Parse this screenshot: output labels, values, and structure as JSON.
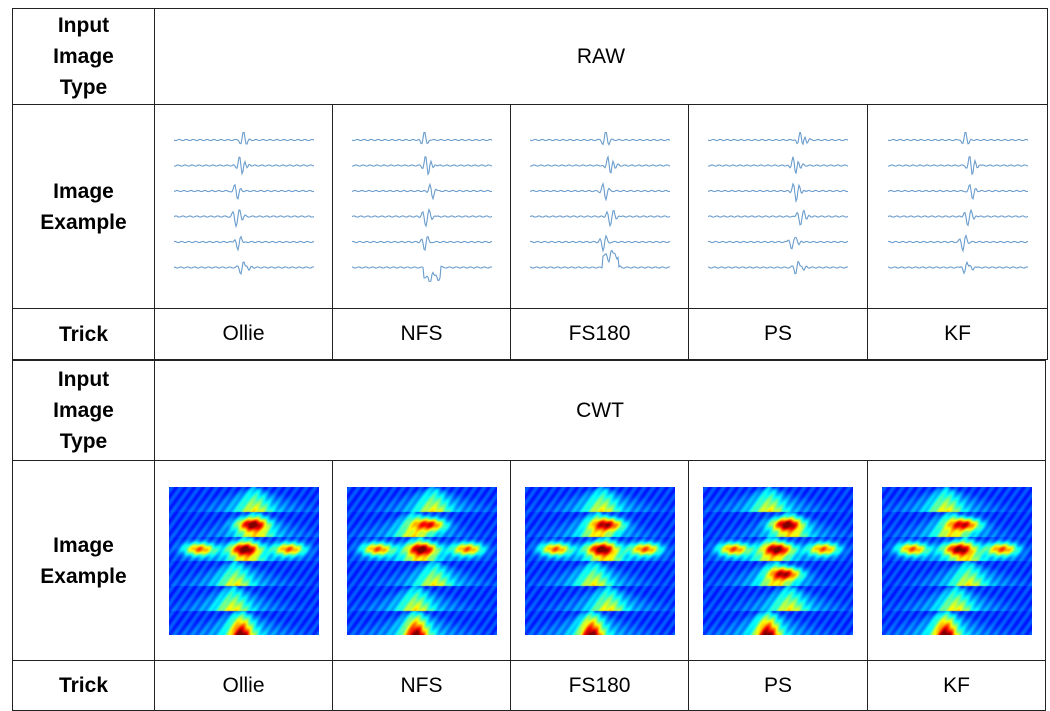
{
  "sections": [
    {
      "type_label_lines": [
        "Input",
        "Image",
        "Type"
      ],
      "type_value": "RAW",
      "example_label_lines": [
        "Image",
        "Example"
      ],
      "trick_label": "Trick",
      "tricks": [
        "Ollie",
        "NFS",
        "FS180",
        "PS",
        "KF"
      ],
      "signal_color": "#6a9ccc"
    },
    {
      "type_label_lines": [
        "Input",
        "Image",
        "Type"
      ],
      "type_value": "CWT",
      "example_label_lines": [
        "Image",
        "Example"
      ],
      "trick_label": "Trick",
      "tricks": [
        "Ollie",
        "NFS",
        "FS180",
        "PS",
        "KF"
      ],
      "colormap": "jet"
    }
  ]
}
